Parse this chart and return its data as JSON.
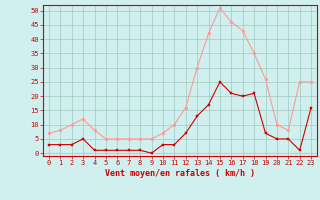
{
  "hours": [
    0,
    1,
    2,
    3,
    4,
    5,
    6,
    7,
    8,
    9,
    10,
    11,
    12,
    13,
    14,
    15,
    16,
    17,
    18,
    19,
    20,
    21,
    22,
    23
  ],
  "wind_avg": [
    3,
    3,
    3,
    5,
    1,
    1,
    1,
    1,
    1,
    0,
    3,
    3,
    7,
    13,
    17,
    25,
    21,
    20,
    21,
    7,
    5,
    5,
    1,
    16
  ],
  "wind_gust": [
    7,
    8,
    10,
    12,
    8,
    5,
    5,
    5,
    5,
    5,
    7,
    10,
    16,
    30,
    42,
    51,
    46,
    43,
    35,
    26,
    10,
    8,
    25,
    25
  ],
  "bg_color": "#cff0ee",
  "grid_color": "#a0c8c0",
  "avg_color": "#cc0000",
  "gust_color": "#ff9999",
  "xlabel": "Vent moyen/en rafales ( km/h )",
  "ylabel_ticks": [
    0,
    5,
    10,
    15,
    20,
    25,
    30,
    35,
    40,
    45,
    50
  ],
  "ylim": [
    -1,
    52
  ],
  "xlim": [
    -0.5,
    23.5
  ],
  "marker_size": 2.0,
  "line_width": 0.8,
  "tick_fontsize": 5.0,
  "xlabel_fontsize": 6.0
}
